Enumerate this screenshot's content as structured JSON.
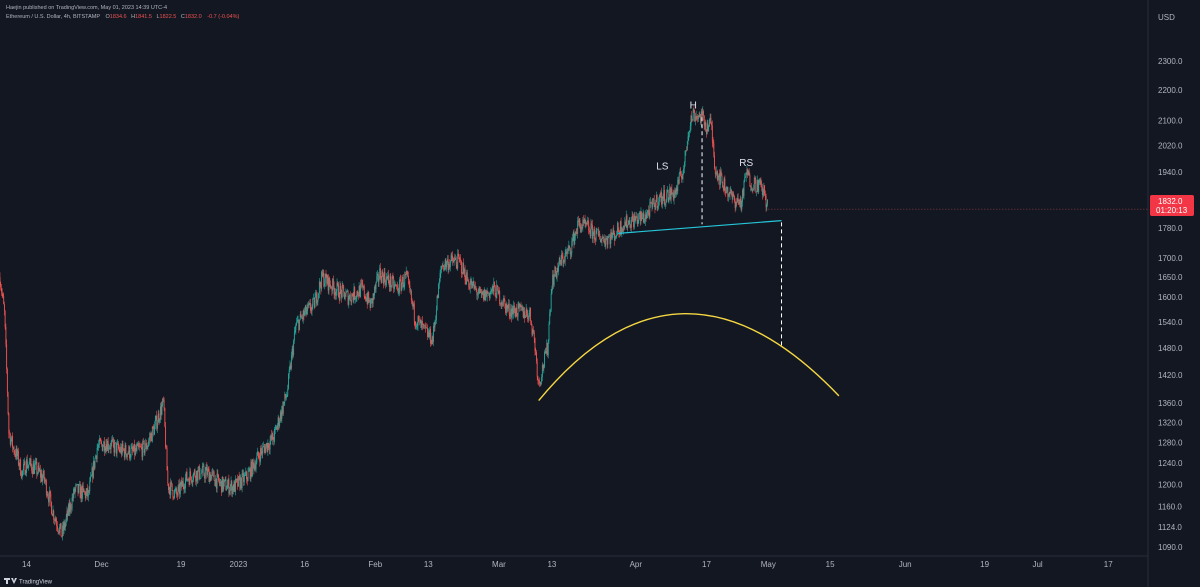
{
  "header": {
    "publisher": "Haejin published on TradingView.com, May 01, 2023 14:39 UTC-4",
    "symbol": "Ethereum / U.S. Dollar, 4h, BITSTAMP",
    "ohlc": [
      {
        "label": "O",
        "value": "1834.6"
      },
      {
        "label": "H",
        "value": "1841.5"
      },
      {
        "label": "L",
        "value": "1822.5"
      },
      {
        "label": "C",
        "value": "1832.0"
      }
    ],
    "change": "-0.7 (-0.04%)"
  },
  "price_axis": {
    "currency": "USD",
    "last_price": "1832.0",
    "countdown": "01:20:13"
  },
  "branding": {
    "logo_text": "TradingView"
  },
  "colors": {
    "background": "#131722",
    "up": "#26a69a",
    "down": "#ef5350",
    "neckline": "#26c6da",
    "arc": "#f5d742",
    "text": "#b2b5be",
    "last_price_bg": "#f23645"
  },
  "chart_data": {
    "type": "candlestick",
    "title": "",
    "symbol": "Ethereum / U.S. Dollar, 4h, BITSTAMP",
    "timeframe": "4h",
    "x_axis": {
      "ticks": [
        {
          "label": "14",
          "date": "2022-11-14"
        },
        {
          "label": "Dec",
          "date": "2022-12-01"
        },
        {
          "label": "19",
          "date": "2022-12-19"
        },
        {
          "label": "2023",
          "date": "2023-01-01"
        },
        {
          "label": "16",
          "date": "2023-01-16"
        },
        {
          "label": "Feb",
          "date": "2023-02-01"
        },
        {
          "label": "13",
          "date": "2023-02-13"
        },
        {
          "label": "Mar",
          "date": "2023-03-01"
        },
        {
          "label": "13",
          "date": "2023-03-13"
        },
        {
          "label": "Apr",
          "date": "2023-04-01"
        },
        {
          "label": "17",
          "date": "2023-04-17"
        },
        {
          "label": "May",
          "date": "2023-05-01"
        },
        {
          "label": "15",
          "date": "2023-05-15"
        },
        {
          "label": "Jun",
          "date": "2023-06-01"
        },
        {
          "label": "19",
          "date": "2023-06-19"
        },
        {
          "label": "Jul",
          "date": "2023-07-01"
        },
        {
          "label": "17",
          "date": "2023-07-17"
        }
      ],
      "range": [
        "2022-11-08",
        "2023-07-26"
      ]
    },
    "y_axis": {
      "scale": "log",
      "ticks": [
        "2300.0",
        "2200.0",
        "2100.0",
        "2020.0",
        "1940.0",
        "1860.0",
        "1780.0",
        "1700.0",
        "1650.0",
        "1600.0",
        "1540.0",
        "1480.0",
        "1420.0",
        "1360.0",
        "1320.0",
        "1280.0",
        "1240.0",
        "1200.0",
        "1160.0",
        "1124.0",
        "1090.0"
      ],
      "range": [
        1075,
        2420
      ]
    },
    "price_path": [
      [
        "2022-11-08",
        1650
      ],
      [
        "2022-11-09",
        1560
      ],
      [
        "2022-11-10",
        1300
      ],
      [
        "2022-11-11",
        1270
      ],
      [
        "2022-11-12",
        1250
      ],
      [
        "2022-11-13",
        1220
      ],
      [
        "2022-11-14",
        1240
      ],
      [
        "2022-11-16",
        1230
      ],
      [
        "2022-11-18",
        1210
      ],
      [
        "2022-11-20",
        1150
      ],
      [
        "2022-11-22",
        1110
      ],
      [
        "2022-11-25",
        1190
      ],
      [
        "2022-11-28",
        1180
      ],
      [
        "2022-11-30",
        1270
      ],
      [
        "2022-12-02",
        1280
      ],
      [
        "2022-12-05",
        1265
      ],
      [
        "2022-12-08",
        1260
      ],
      [
        "2022-12-11",
        1270
      ],
      [
        "2022-12-13",
        1310
      ],
      [
        "2022-12-15",
        1360
      ],
      [
        "2022-12-16",
        1200
      ],
      [
        "2022-12-18",
        1180
      ],
      [
        "2022-12-20",
        1210
      ],
      [
        "2022-12-22",
        1220
      ],
      [
        "2022-12-25",
        1222
      ],
      [
        "2022-12-28",
        1200
      ],
      [
        "2022-12-31",
        1195
      ],
      [
        "2023-01-03",
        1215
      ],
      [
        "2023-01-06",
        1260
      ],
      [
        "2023-01-09",
        1290
      ],
      [
        "2023-01-12",
        1380
      ],
      [
        "2023-01-14",
        1530
      ],
      [
        "2023-01-16",
        1560
      ],
      [
        "2023-01-18",
        1580
      ],
      [
        "2023-01-20",
        1650
      ],
      [
        "2023-01-23",
        1620
      ],
      [
        "2023-01-26",
        1600
      ],
      [
        "2023-01-29",
        1620
      ],
      [
        "2023-01-31",
        1580
      ],
      [
        "2023-02-02",
        1660
      ],
      [
        "2023-02-04",
        1640
      ],
      [
        "2023-02-06",
        1620
      ],
      [
        "2023-02-08",
        1650
      ],
      [
        "2023-02-10",
        1550
      ],
      [
        "2023-02-12",
        1520
      ],
      [
        "2023-02-14",
        1500
      ],
      [
        "2023-02-16",
        1680
      ],
      [
        "2023-02-18",
        1690
      ],
      [
        "2023-02-20",
        1690
      ],
      [
        "2023-02-22",
        1640
      ],
      [
        "2023-02-25",
        1600
      ],
      [
        "2023-02-28",
        1620
      ],
      [
        "2023-03-03",
        1570
      ],
      [
        "2023-03-06",
        1565
      ],
      [
        "2023-03-08",
        1560
      ],
      [
        "2023-03-09",
        1500
      ],
      [
        "2023-03-10",
        1400
      ],
      [
        "2023-03-11",
        1440
      ],
      [
        "2023-03-12",
        1480
      ],
      [
        "2023-03-13",
        1640
      ],
      [
        "2023-03-15",
        1690
      ],
      [
        "2023-03-17",
        1720
      ],
      [
        "2023-03-19",
        1790
      ],
      [
        "2023-03-21",
        1780
      ],
      [
        "2023-03-23",
        1760
      ],
      [
        "2023-03-25",
        1750
      ],
      [
        "2023-03-27",
        1760
      ],
      [
        "2023-03-29",
        1790
      ],
      [
        "2023-03-31",
        1800
      ],
      [
        "2023-04-03",
        1810
      ],
      [
        "2023-04-06",
        1860
      ],
      [
        "2023-04-08",
        1870
      ],
      [
        "2023-04-10",
        1880
      ],
      [
        "2023-04-12",
        1960
      ],
      [
        "2023-04-13",
        2080
      ],
      [
        "2023-04-14",
        2120
      ],
      [
        "2023-04-16",
        2110
      ],
      [
        "2023-04-17",
        2080
      ],
      [
        "2023-04-18",
        2090
      ],
      [
        "2023-04-19",
        1950
      ],
      [
        "2023-04-21",
        1900
      ],
      [
        "2023-04-23",
        1860
      ],
      [
        "2023-04-25",
        1850
      ],
      [
        "2023-04-26",
        1940
      ],
      [
        "2023-04-27",
        1910
      ],
      [
        "2023-04-29",
        1900
      ],
      [
        "2023-04-30",
        1880
      ],
      [
        "2023-05-01",
        1832
      ]
    ],
    "last_price": 1832.0,
    "annotations": [
      {
        "label": "LS",
        "date": "2023-04-07",
        "price": 1935
      },
      {
        "label": "H",
        "date": "2023-04-14",
        "price": 2125
      },
      {
        "label": "RS",
        "date": "2023-04-26",
        "price": 1945
      }
    ],
    "drawings": {
      "neckline": {
        "from": [
          "2023-03-28",
          1765
        ],
        "to": [
          "2023-05-04",
          1800
        ]
      },
      "head_drop": {
        "date": "2023-04-16",
        "from": 2110,
        "to": 1790
      },
      "target_drop": {
        "date": "2023-05-04",
        "from": 1795,
        "to": 1480
      },
      "arc": {
        "from": [
          "2023-03-10",
          1365
        ],
        "peak": [
          "2023-04-12",
          1560
        ],
        "to": [
          "2023-05-17",
          1375
        ]
      }
    },
    "grid": false,
    "legend": "none"
  }
}
